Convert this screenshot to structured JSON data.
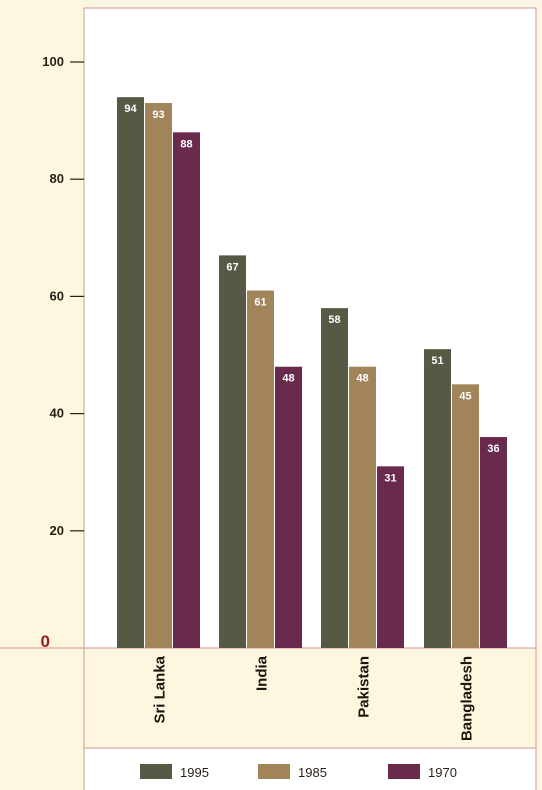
{
  "chart_data": {
    "type": "bar",
    "categories": [
      "Sri Lanka",
      "India",
      "Pakistan",
      "Bangladesh"
    ],
    "series": [
      {
        "name": "1995",
        "color": "#565a44",
        "values": [
          94,
          67,
          58,
          51
        ]
      },
      {
        "name": "1985",
        "color": "#a2845a",
        "values": [
          93,
          61,
          48,
          45
        ]
      },
      {
        "name": "1970",
        "color": "#6a2a4e",
        "values": [
          88,
          48,
          31,
          36
        ]
      }
    ],
    "y_ticks": [
      "0",
      "20",
      "40",
      "60",
      "80",
      "100"
    ],
    "ylim": [
      0,
      100
    ],
    "grid": false,
    "legend_position": "bottom",
    "colors": {
      "background": "#fbf6e4",
      "plot_background": "#ffffff",
      "axis_line": "#d9a9a0",
      "zero_tick": "#9c1b22",
      "accent_panel": "#fdf7df"
    }
  }
}
